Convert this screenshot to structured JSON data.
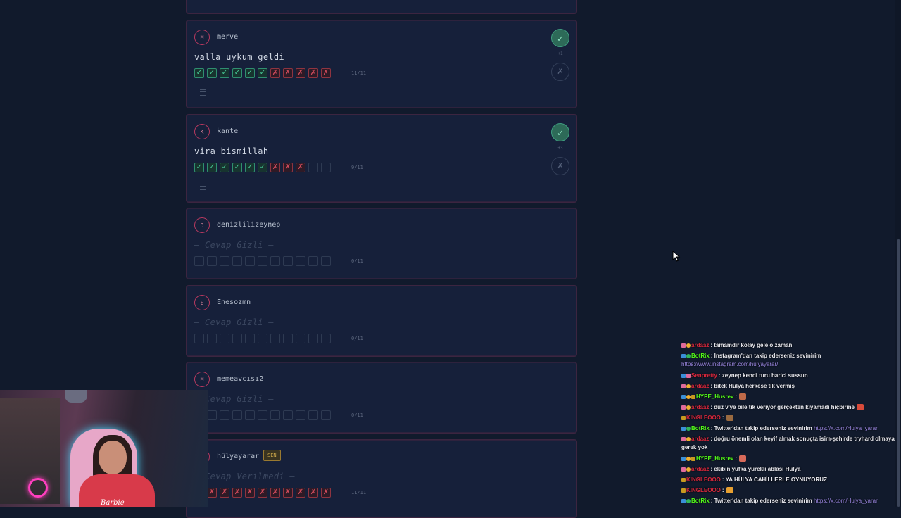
{
  "cards": [
    {
      "id": "merve",
      "avatar": "M",
      "username": "merve",
      "answer": "valla uykum geldi",
      "results": [
        "ok",
        "ok",
        "ok",
        "ok",
        "ok",
        "ok",
        "no",
        "no",
        "no",
        "no",
        "no"
      ],
      "score": "11/11",
      "vote_count": "+1",
      "has_vote": true,
      "has_menu": true,
      "hidden": false
    },
    {
      "id": "kante",
      "avatar": "K",
      "username": "kante",
      "answer": "vira bismillah",
      "results": [
        "ok",
        "ok",
        "ok",
        "ok",
        "ok",
        "ok",
        "no",
        "no",
        "no",
        "empty",
        "empty"
      ],
      "score": "9/11",
      "vote_count": "+3",
      "has_vote": true,
      "has_menu": true,
      "hidden": false
    },
    {
      "id": "denizlilizeynep",
      "avatar": "D",
      "username": "denizlilizeynep",
      "answer": "— Cevap Gizli —",
      "results": [
        "empty",
        "empty",
        "empty",
        "empty",
        "empty",
        "empty",
        "empty",
        "empty",
        "empty",
        "empty",
        "empty"
      ],
      "score": "0/11",
      "hidden": true
    },
    {
      "id": "enesozmn",
      "avatar": "E",
      "username": "Enesozmn",
      "answer": "— Cevap Gizli —",
      "results": [
        "empty",
        "empty",
        "empty",
        "empty",
        "empty",
        "empty",
        "empty",
        "empty",
        "empty",
        "empty",
        "empty"
      ],
      "score": "0/11",
      "hidden": true
    },
    {
      "id": "memeavcisi2",
      "avatar": "M",
      "username": "memeavcısı2",
      "answer": "— Cevap Gizli —",
      "results": [
        "empty",
        "empty",
        "empty",
        "empty",
        "empty",
        "empty",
        "empty",
        "empty",
        "empty",
        "empty",
        "empty"
      ],
      "score": "0/11",
      "hidden": true
    },
    {
      "id": "hulyayarar",
      "avatar": "H",
      "username": "hülyayarar",
      "self_badge": "SEN",
      "answer": "— Cevap Verilmedi —",
      "results": [
        "no",
        "no",
        "no",
        "no",
        "no",
        "no",
        "no",
        "no",
        "no",
        "no",
        "no"
      ],
      "score": "11/11",
      "hidden": true
    }
  ],
  "icons": {
    "check": "check-icon",
    "cross": "cross-icon",
    "menu": "menu-icon"
  },
  "chat": [
    {
      "badges": [
        "vip",
        "sub"
      ],
      "user": "ardaaz",
      "user_color": "#d8273c",
      "text": ": tamamdır kolay gele o zaman"
    },
    {
      "badges": [
        "mod",
        "bot"
      ],
      "user": "BotRix",
      "user_color": "#53fc18",
      "text": ": Instagram'dan takip ederseniz sevinirim",
      "link": "https://www.instagram.com/hulyayarar/",
      "wrap": true
    },
    {
      "badges": [
        "mod",
        "vip"
      ],
      "user": "Senpretty",
      "user_color": "#d8273c",
      "text": ": zeynep kendi turu harici sussun"
    },
    {
      "badges": [
        "vip",
        "sub"
      ],
      "user": "ardaaz",
      "user_color": "#d8273c",
      "text": ": bitek Hülya herkese tik vermiş"
    },
    {
      "badges": [
        "mod",
        "sub",
        "pre"
      ],
      "user": "HYPE_Husrev",
      "user_color": "#53fc18",
      "text": ":",
      "emote": "#c06a48"
    },
    {
      "badges": [
        "vip",
        "sub"
      ],
      "user": "ardaaz",
      "user_color": "#d8273c",
      "text": ": düz v'ye bile tik veriyor gerçekten kıyamadı hiçbirine",
      "emote": "#d84a3a"
    },
    {
      "badges": [
        "pre"
      ],
      "user": "KINGLEOOO",
      "user_color": "#d8273c",
      "text": ":",
      "emote": "#9a6a40"
    },
    {
      "badges": [
        "mod",
        "bot"
      ],
      "user": "BotRix",
      "user_color": "#53fc18",
      "text": ": Twitter'dan takip ederseniz sevinirim",
      "link": "https://x.com/Hulya_yarar"
    },
    {
      "badges": [
        "vip",
        "sub"
      ],
      "user": "ardaaz",
      "user_color": "#d8273c",
      "text": ": doğru önemli olan keyif almak sonuçta isim-şehirde tryhard olmaya gerek yok",
      "wrap": true
    },
    {
      "badges": [
        "mod",
        "sub",
        "pre"
      ],
      "user": "HYPE_Husrev",
      "user_color": "#53fc18",
      "text": ":",
      "emote": "#d86a5a"
    },
    {
      "badges": [
        "vip",
        "sub"
      ],
      "user": "ardaaz",
      "user_color": "#d8273c",
      "text": ": ekibin yufka yürekli ablası Hülya"
    },
    {
      "badges": [
        "pre"
      ],
      "user": "KINGLEOOO",
      "user_color": "#d8273c",
      "text": ": YA HÜLYA CAHİLLERLE OYNUYORUZ"
    },
    {
      "badges": [
        "pre"
      ],
      "user": "KINGLEOOO",
      "user_color": "#d8273c",
      "text": ":",
      "emote": "#e8a030"
    },
    {
      "badges": [
        "mod",
        "bot"
      ],
      "user": "BotRix",
      "user_color": "#53fc18",
      "text": ": Twitter'dan takip ederseniz sevinirim",
      "link": "https://x.com/Hulya_yarar"
    }
  ],
  "webcam": {
    "shirt_text": "Barbie"
  }
}
